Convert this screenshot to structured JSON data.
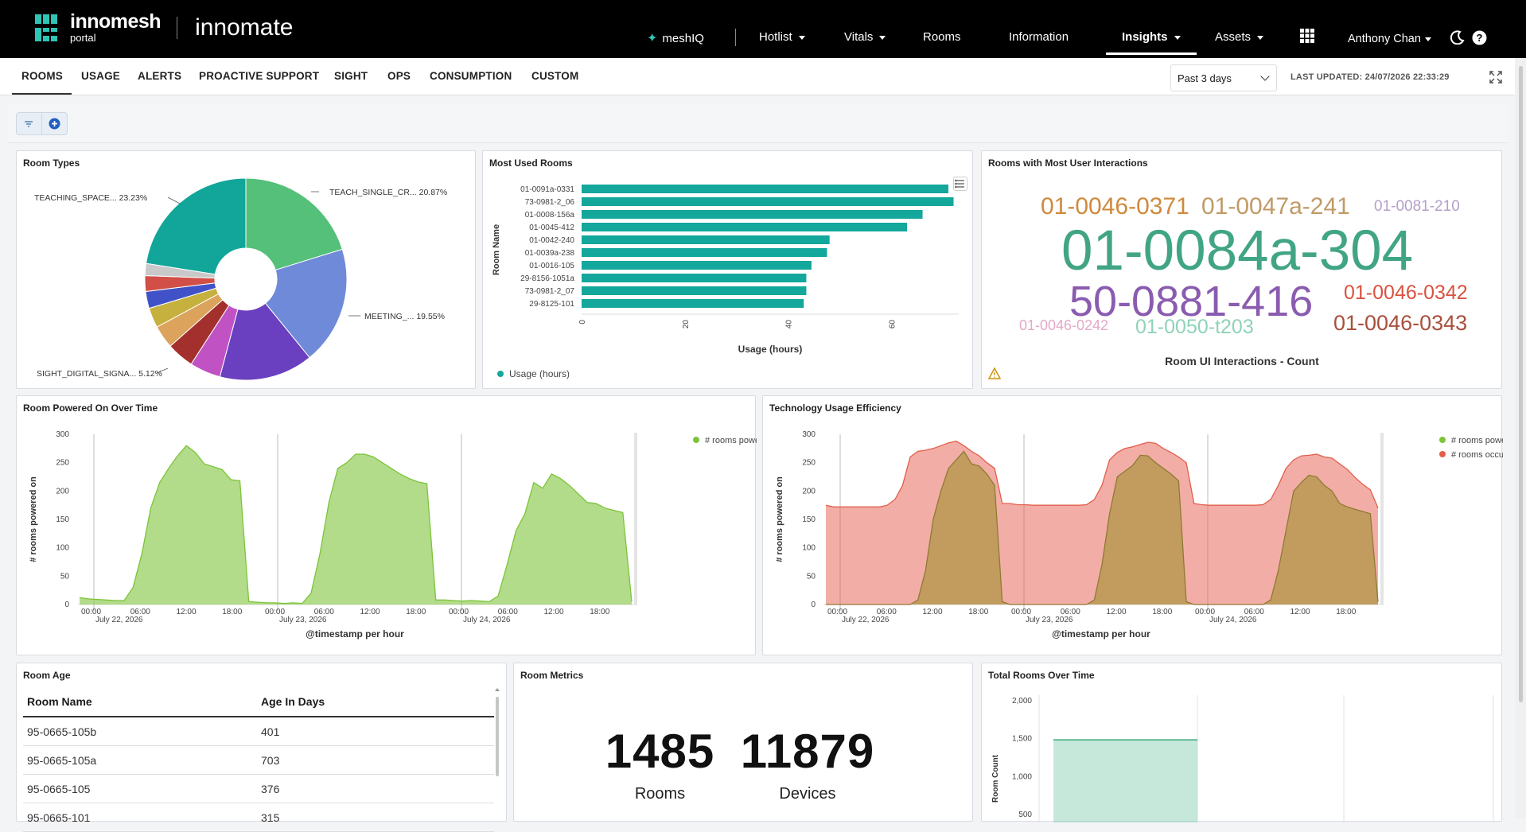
{
  "brand": {
    "logo_line1": "innomesh",
    "logo_line2": "portal",
    "product": "innomate"
  },
  "nav": {
    "meshiq": "meshIQ",
    "hotlist": "Hotlist",
    "vitals": "Vitals",
    "rooms": "Rooms",
    "information": "Information",
    "insights": "Insights",
    "assets": "Assets",
    "user": "Anthony Chan"
  },
  "tabs": [
    "ROOMS",
    "USAGE",
    "ALERTS",
    "PROACTIVE SUPPORT",
    "SIGHT",
    "OPS",
    "CONSUMPTION",
    "CUSTOM"
  ],
  "time_range": "Past 3 days",
  "last_updated": "LAST UPDATED: 24/07/2026 22:33:29",
  "panels": {
    "room_types": "Room Types",
    "most_used": "Most Used Rooms",
    "interactions": "Rooms with Most User Interactions",
    "powered": "Room Powered On Over Time",
    "efficiency": "Technology Usage Efficiency",
    "age": "Room Age",
    "metrics": "Room Metrics",
    "total": "Total Rooms Over Time"
  },
  "room_types_chart": {
    "type": "pie",
    "labels": [
      {
        "text": "TEACHING_SPACE...",
        "pct": "23.23%"
      },
      {
        "text": "TEACH_SINGLE_CR...",
        "pct": "20.87%"
      },
      {
        "text": "MEETING_...",
        "pct": "19.55%"
      },
      {
        "text": "SIGHT_DIGITAL_SIGNA...",
        "pct": "5.12%"
      }
    ],
    "colors": {
      "teach_single": "#54c07a",
      "meeting": "#6f8ad8",
      "purple": "#6a3fc0",
      "magenta": "#c152c4",
      "darkred": "#a3302c",
      "orange": "#dca35c",
      "olive": "#c6b13e",
      "blue": "#4152c8",
      "red": "#d14f47",
      "teaching": "#12a69a"
    }
  },
  "chart_data": [
    {
      "type": "pie",
      "title": "Room Types",
      "slices": [
        {
          "label": "TEACH_SINGLE_CR...",
          "value": 20.87
        },
        {
          "label": "MEETING_...",
          "value": 19.55
        },
        {
          "label": "",
          "value": 15.5
        },
        {
          "label": "SIGHT_DIGITAL_SIGNA...",
          "value": 5.12
        },
        {
          "label": "",
          "value": 4.5
        },
        {
          "label": "",
          "value": 3.8
        },
        {
          "label": "",
          "value": 3.3
        },
        {
          "label": "",
          "value": 2.8
        },
        {
          "label": "",
          "value": 2.6
        },
        {
          "label": "",
          "value": 2.0
        },
        {
          "label": "TEACHING_SPACE...",
          "value": 23.23
        }
      ]
    },
    {
      "type": "bar",
      "title": "Most Used Rooms",
      "orientation": "horizontal",
      "categories": [
        "01-0091a-0331",
        "73-0981-2_06",
        "01-0008-156a",
        "01-0045-412",
        "01-0042-240",
        "01-0039a-238",
        "01-0016-105",
        "29-8156-1051a",
        "73-0981-2_07",
        "29-8125-101"
      ],
      "values": [
        71,
        72,
        66,
        63,
        48,
        47.5,
        44.5,
        43.5,
        43.5,
        43
      ],
      "xlabel": "Usage (hours)",
      "ylabel": "Room Name",
      "xticks": [
        "0",
        "20",
        "40",
        "60"
      ],
      "legend": "Usage (hours)",
      "xlim": [
        0,
        73
      ]
    },
    {
      "type": "area",
      "title": "Room Powered On Over Time",
      "x_tick_labels": [
        "00:00",
        "06:00",
        "12:00",
        "18:00",
        "00:00",
        "06:00",
        "12:00",
        "18:00",
        "00:00",
        "06:00",
        "12:00",
        "18:00"
      ],
      "date_labels": [
        "July 22, 2026",
        "July 23, 2026",
        "July 24, 2026"
      ],
      "ylabel": "# rooms powered on",
      "xlabel": "@timestamp per hour",
      "ylim": [
        0,
        300
      ],
      "yticks": [
        "0",
        "50",
        "100",
        "150",
        "200",
        "250",
        "300"
      ],
      "series": [
        {
          "name": "# rooms power...",
          "color": "#7cc43a",
          "values": [
            12,
            10,
            9,
            8,
            7,
            7,
            30,
            90,
            170,
            215,
            240,
            262,
            280,
            268,
            248,
            243,
            238,
            220,
            218,
            5,
            4,
            3,
            3,
            2,
            3,
            2,
            20,
            90,
            180,
            240,
            250,
            265,
            265,
            260,
            250,
            240,
            230,
            222,
            216,
            213,
            8,
            8,
            7,
            6,
            7,
            6,
            5,
            15,
            70,
            130,
            160,
            215,
            205,
            230,
            222,
            210,
            195,
            180,
            178,
            170,
            166,
            162,
            5
          ]
        }
      ]
    },
    {
      "type": "area",
      "title": "Technology Usage Efficiency",
      "x_tick_labels": [
        "00:00",
        "06:00",
        "12:00",
        "18:00",
        "00:00",
        "06:00",
        "12:00",
        "18:00",
        "00:00",
        "06:00",
        "12:00",
        "18:00"
      ],
      "date_labels": [
        "July 22, 2026",
        "July 23, 2026",
        "July 24, 2026"
      ],
      "ylabel": "# rooms powered on",
      "xlabel": "@timestamp per hour",
      "ylim": [
        0,
        300
      ],
      "yticks": [
        "0",
        "50",
        "100",
        "150",
        "200",
        "250",
        "300"
      ],
      "series": [
        {
          "name": "# rooms power...",
          "color": "#7cc43a",
          "values": [
            0,
            0,
            0,
            0,
            0,
            0,
            0,
            0,
            0,
            0,
            0,
            0,
            8,
            60,
            150,
            200,
            240,
            255,
            270,
            248,
            244,
            230,
            210,
            5,
            0,
            0,
            0,
            0,
            0,
            0,
            0,
            0,
            0,
            0,
            0,
            8,
            70,
            160,
            225,
            235,
            245,
            263,
            262,
            250,
            240,
            230,
            218,
            5,
            0,
            0,
            0,
            0,
            0,
            0,
            0,
            0,
            0,
            0,
            8,
            60,
            130,
            200,
            215,
            228,
            225,
            210,
            200,
            178,
            172,
            168,
            164,
            160,
            5
          ]
        },
        {
          "name": "# rooms occupi...",
          "color": "#e45d4b",
          "values": [
            175,
            172,
            172,
            172,
            172,
            172,
            172,
            172,
            175,
            185,
            210,
            260,
            270,
            272,
            275,
            280,
            285,
            288,
            280,
            270,
            262,
            250,
            240,
            178,
            178,
            176,
            176,
            175,
            175,
            175,
            175,
            175,
            175,
            175,
            176,
            185,
            210,
            255,
            268,
            275,
            278,
            282,
            286,
            284,
            275,
            268,
            260,
            250,
            178,
            176,
            175,
            175,
            175,
            175,
            175,
            175,
            175,
            176,
            185,
            210,
            240,
            255,
            262,
            263,
            265,
            260,
            258,
            248,
            238,
            224,
            212,
            202,
            170
          ]
        }
      ]
    },
    {
      "type": "area",
      "title": "Total Rooms Over Time",
      "ylabel": "Room Count",
      "ylim": [
        0,
        2000
      ],
      "yticks": [
        "500",
        "1,000",
        "1,500",
        "2,000"
      ],
      "values": [
        1485
      ]
    }
  ],
  "interactions_cloud": {
    "caption": "Room UI Interactions - Count",
    "words": [
      {
        "text": "01-0046-0371",
        "color": "#cf8a3c"
      },
      {
        "text": "01-0047a-241",
        "color": "#c09b66"
      },
      {
        "text": "01-0081-210",
        "color": "#b5a0c8"
      },
      {
        "text": "01-0084a-304",
        "color": "#41a585"
      },
      {
        "text": "50-0881-416",
        "color": "#8a5cb0"
      },
      {
        "text": "01-0046-0342",
        "color": "#d9533f"
      },
      {
        "text": "01-0046-0242",
        "color": "#e3a9c8"
      },
      {
        "text": "01-0050-t203",
        "color": "#8fd3b8"
      },
      {
        "text": "01-0046-0343",
        "color": "#a8503c"
      }
    ]
  },
  "room_age": {
    "headers": [
      "Room Name",
      "Age In Days"
    ],
    "rows": [
      [
        "95-0665-105b",
        "401"
      ],
      [
        "95-0665-105a",
        "703"
      ],
      [
        "95-0665-105",
        "376"
      ],
      [
        "95-0665-101",
        "315"
      ]
    ]
  },
  "metrics": {
    "rooms_value": "1485",
    "rooms_label": "Rooms",
    "devices_value": "11879",
    "devices_label": "Devices"
  }
}
